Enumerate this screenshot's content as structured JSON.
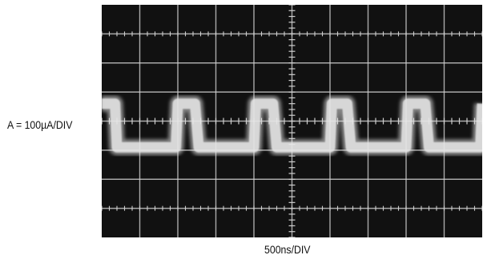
{
  "chart_data": {
    "type": "line",
    "title": "",
    "ylabel": "A = 100µA/DIV",
    "xlabel": "500ns/DIV",
    "x_divisions": 10,
    "y_divisions": 8,
    "grid": true,
    "series": [
      {
        "x": [
          0,
          0.35,
          0.4,
          1.95,
          2.0,
          2.45,
          2.55,
          4.0,
          4.05,
          4.5,
          4.6,
          6.0,
          6.05,
          6.45,
          6.55,
          8.0,
          8.05,
          8.5,
          8.6,
          9.95,
          10.0
        ],
        "y": [
          4.6,
          4.6,
          3.1,
          3.1,
          4.6,
          4.6,
          3.1,
          3.1,
          4.6,
          4.6,
          3.1,
          3.1,
          4.6,
          4.6,
          3.1,
          3.1,
          4.6,
          4.6,
          3.1,
          3.1,
          4.6
        ]
      }
    ],
    "colors": {
      "screen": "#111111",
      "trace": "#e6e6e6",
      "grid": "#cfcfcf"
    }
  }
}
